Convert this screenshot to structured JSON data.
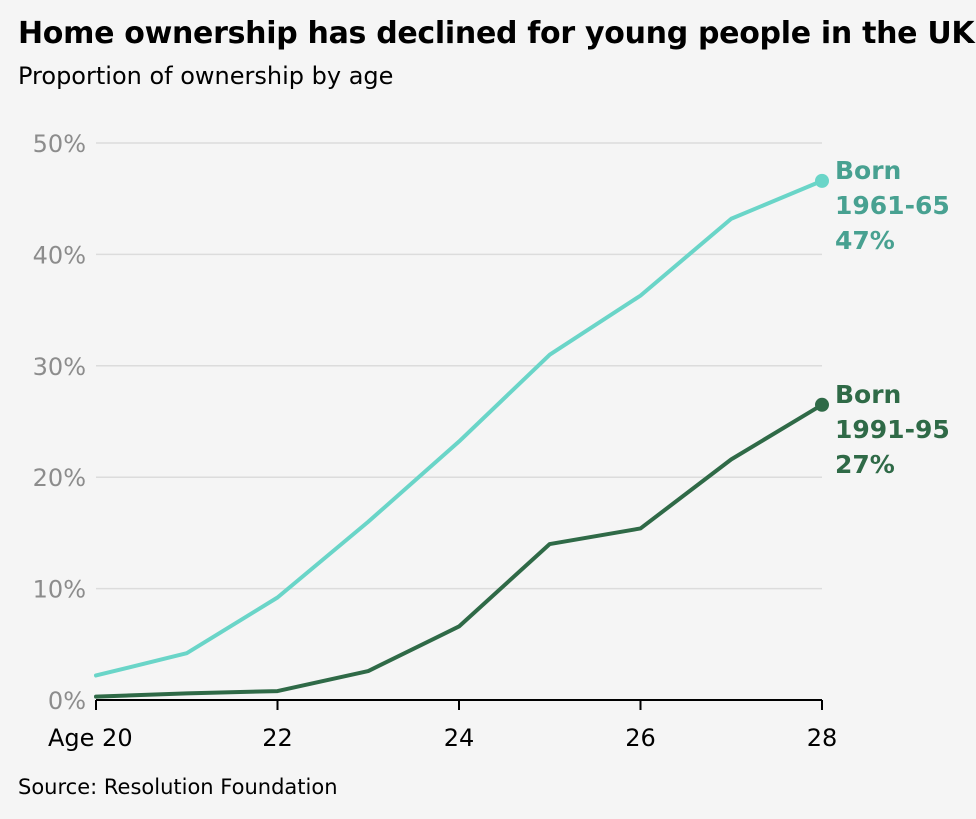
{
  "title": "Home ownership has declined for young people in the UK",
  "subtitle": "Proportion of ownership by age",
  "source": "Source: Resolution Foundation",
  "colors": {
    "series_1961": "#6ad5c8",
    "series_1991": "#2f6a47",
    "label_1961": "#48a191",
    "grid": "#dcdcdc",
    "axis": "#000000"
  },
  "chart_data": {
    "type": "line",
    "x": [
      20,
      21,
      22,
      23,
      24,
      25,
      26,
      27,
      28
    ],
    "xlim": [
      20,
      28
    ],
    "ylim": [
      0,
      50
    ],
    "x_ticks": [
      {
        "value": 20,
        "label": "Age 20"
      },
      {
        "value": 22,
        "label": "22"
      },
      {
        "value": 24,
        "label": "24"
      },
      {
        "value": 26,
        "label": "26"
      },
      {
        "value": 28,
        "label": "28"
      }
    ],
    "y_ticks": [
      {
        "value": 0,
        "label": "0%"
      },
      {
        "value": 10,
        "label": "10%"
      },
      {
        "value": 20,
        "label": "20%"
      },
      {
        "value": 30,
        "label": "30%"
      },
      {
        "value": 40,
        "label": "40%"
      },
      {
        "value": 50,
        "label": "50%"
      }
    ],
    "grid": true,
    "series": [
      {
        "key": "born-1961-65",
        "label_lines": [
          "Born",
          "1961-65",
          "47%"
        ],
        "values": [
          2.2,
          4.2,
          9.2,
          16.0,
          23.2,
          31.0,
          36.3,
          43.2,
          46.6
        ]
      },
      {
        "key": "born-1991-95",
        "label_lines": [
          "Born",
          "1991-95",
          "27%"
        ],
        "values": [
          0.3,
          0.6,
          0.8,
          2.6,
          6.6,
          14.0,
          15.4,
          21.6,
          26.5
        ]
      }
    ]
  }
}
